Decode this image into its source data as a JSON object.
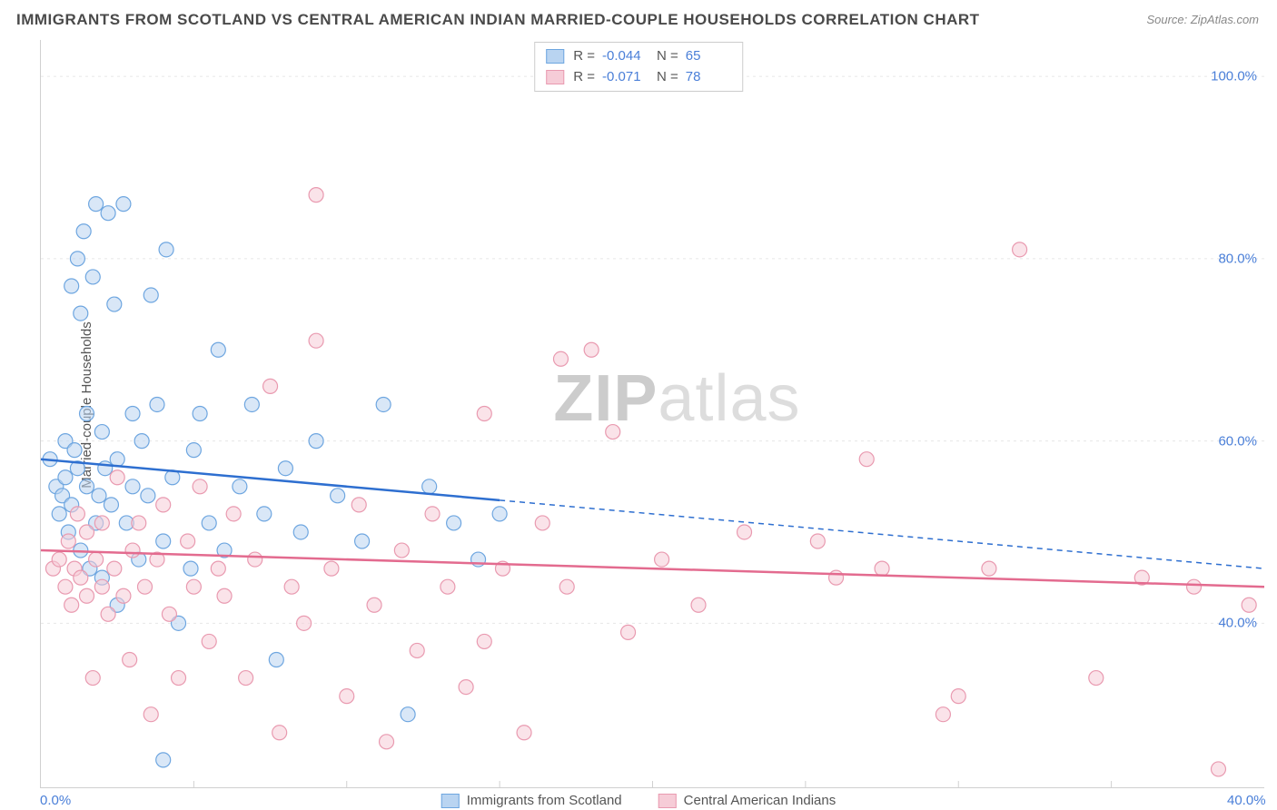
{
  "title": "IMMIGRANTS FROM SCOTLAND VS CENTRAL AMERICAN INDIAN MARRIED-COUPLE HOUSEHOLDS CORRELATION CHART",
  "source_label": "Source: ZipAtlas.com",
  "ylabel": "Married-couple Households",
  "watermark": {
    "bold": "ZIP",
    "light": "atlas"
  },
  "chart": {
    "type": "scatter",
    "background_color": "#ffffff",
    "grid_color": "#e8e8e8",
    "axis_color": "#d0d0d0",
    "xlim": [
      0,
      40
    ],
    "ylim": [
      22,
      104
    ],
    "xticks": [
      0,
      40
    ],
    "xtick_labels": [
      "0.0%",
      "40.0%"
    ],
    "yticks": [
      40,
      60,
      80,
      100
    ],
    "ytick_labels": [
      "40.0%",
      "60.0%",
      "80.0%",
      "100.0%"
    ],
    "x_minor_ticks": [
      5,
      10,
      15,
      20,
      25,
      30,
      35
    ],
    "marker_radius": 8,
    "marker_opacity": 0.55,
    "line_width": 2.5
  },
  "stats_box": {
    "rows": [
      {
        "swatch_fill": "#b9d4f1",
        "swatch_stroke": "#6ea6e0",
        "R": "-0.044",
        "N": "65"
      },
      {
        "swatch_fill": "#f6ccd7",
        "swatch_stroke": "#e99ab0",
        "R": "-0.071",
        "N": "78"
      }
    ]
  },
  "legend": {
    "items": [
      {
        "label": "Immigrants from Scotland",
        "fill": "#b9d4f1",
        "stroke": "#6ea6e0"
      },
      {
        "label": "Central American Indians",
        "fill": "#f6ccd7",
        "stroke": "#e99ab0"
      }
    ]
  },
  "series": [
    {
      "name": "Immigrants from Scotland",
      "fill": "#b9d4f1",
      "stroke": "#6ea6e0",
      "trend": {
        "color": "#2e6fd0",
        "y_at_xmin": 58,
        "y_at_xmax": 46,
        "solid_until_x": 15
      },
      "points": [
        [
          0.3,
          58
        ],
        [
          0.5,
          55
        ],
        [
          0.6,
          52
        ],
        [
          0.7,
          54
        ],
        [
          0.8,
          60
        ],
        [
          0.8,
          56
        ],
        [
          0.9,
          50
        ],
        [
          1.0,
          77
        ],
        [
          1.0,
          53
        ],
        [
          1.1,
          59
        ],
        [
          1.2,
          80
        ],
        [
          1.2,
          57
        ],
        [
          1.3,
          74
        ],
        [
          1.3,
          48
        ],
        [
          1.4,
          83
        ],
        [
          1.5,
          55
        ],
        [
          1.5,
          63
        ],
        [
          1.6,
          46
        ],
        [
          1.7,
          78
        ],
        [
          1.8,
          51
        ],
        [
          1.8,
          86
        ],
        [
          1.9,
          54
        ],
        [
          2.0,
          61
        ],
        [
          2.0,
          45
        ],
        [
          2.1,
          57
        ],
        [
          2.2,
          85
        ],
        [
          2.3,
          53
        ],
        [
          2.4,
          75
        ],
        [
          2.5,
          58
        ],
        [
          2.5,
          42
        ],
        [
          2.7,
          86
        ],
        [
          2.8,
          51
        ],
        [
          3.0,
          63
        ],
        [
          3.0,
          55
        ],
        [
          3.2,
          47
        ],
        [
          3.3,
          60
        ],
        [
          3.5,
          54
        ],
        [
          3.6,
          76
        ],
        [
          3.8,
          64
        ],
        [
          4.0,
          49
        ],
        [
          4.0,
          25
        ],
        [
          4.1,
          81
        ],
        [
          4.3,
          56
        ],
        [
          4.5,
          40
        ],
        [
          4.9,
          46
        ],
        [
          5.0,
          59
        ],
        [
          5.2,
          63
        ],
        [
          5.5,
          51
        ],
        [
          5.8,
          70
        ],
        [
          6.0,
          48
        ],
        [
          6.5,
          55
        ],
        [
          6.9,
          64
        ],
        [
          7.3,
          52
        ],
        [
          7.7,
          36
        ],
        [
          8.0,
          57
        ],
        [
          8.5,
          50
        ],
        [
          9.0,
          60
        ],
        [
          9.7,
          54
        ],
        [
          10.5,
          49
        ],
        [
          11.2,
          64
        ],
        [
          12.0,
          30
        ],
        [
          12.7,
          55
        ],
        [
          13.5,
          51
        ],
        [
          14.3,
          47
        ],
        [
          15.0,
          52
        ]
      ]
    },
    {
      "name": "Central American Indians",
      "fill": "#f6ccd7",
      "stroke": "#e99ab0",
      "trend": {
        "color": "#e36b8f",
        "y_at_xmin": 48,
        "y_at_xmax": 44,
        "solid_until_x": 40
      },
      "points": [
        [
          0.4,
          46
        ],
        [
          0.6,
          47
        ],
        [
          0.8,
          44
        ],
        [
          0.9,
          49
        ],
        [
          1.0,
          42
        ],
        [
          1.1,
          46
        ],
        [
          1.2,
          52
        ],
        [
          1.3,
          45
        ],
        [
          1.5,
          43
        ],
        [
          1.5,
          50
        ],
        [
          1.7,
          34
        ],
        [
          1.8,
          47
        ],
        [
          2.0,
          51
        ],
        [
          2.0,
          44
        ],
        [
          2.2,
          41
        ],
        [
          2.4,
          46
        ],
        [
          2.5,
          56
        ],
        [
          2.7,
          43
        ],
        [
          2.9,
          36
        ],
        [
          3.0,
          48
        ],
        [
          3.2,
          51
        ],
        [
          3.4,
          44
        ],
        [
          3.6,
          30
        ],
        [
          3.8,
          47
        ],
        [
          4.0,
          53
        ],
        [
          4.2,
          41
        ],
        [
          4.5,
          34
        ],
        [
          4.8,
          49
        ],
        [
          5.0,
          44
        ],
        [
          5.2,
          55
        ],
        [
          5.5,
          38
        ],
        [
          5.8,
          46
        ],
        [
          6.0,
          43
        ],
        [
          6.3,
          52
        ],
        [
          6.7,
          34
        ],
        [
          7.0,
          47
        ],
        [
          7.5,
          66
        ],
        [
          7.8,
          28
        ],
        [
          8.2,
          44
        ],
        [
          8.6,
          40
        ],
        [
          9.0,
          71
        ],
        [
          9.0,
          87
        ],
        [
          9.5,
          46
        ],
        [
          10.0,
          32
        ],
        [
          10.4,
          53
        ],
        [
          10.9,
          42
        ],
        [
          11.3,
          27
        ],
        [
          11.8,
          48
        ],
        [
          12.3,
          37
        ],
        [
          12.8,
          52
        ],
        [
          13.3,
          44
        ],
        [
          13.9,
          33
        ],
        [
          14.5,
          63
        ],
        [
          14.5,
          38
        ],
        [
          15.1,
          46
        ],
        [
          15.8,
          28
        ],
        [
          16.4,
          51
        ],
        [
          17.0,
          69
        ],
        [
          17.2,
          44
        ],
        [
          18.0,
          70
        ],
        [
          18.7,
          61
        ],
        [
          19.2,
          39
        ],
        [
          20.3,
          47
        ],
        [
          21.5,
          42
        ],
        [
          23.0,
          50
        ],
        [
          25.4,
          49
        ],
        [
          26.0,
          45
        ],
        [
          27.0,
          58
        ],
        [
          27.5,
          46
        ],
        [
          29.5,
          30
        ],
        [
          30.0,
          32
        ],
        [
          31.0,
          46
        ],
        [
          32.0,
          81
        ],
        [
          34.5,
          34
        ],
        [
          36.0,
          45
        ],
        [
          37.7,
          44
        ],
        [
          38.5,
          24
        ],
        [
          39.5,
          42
        ]
      ]
    }
  ]
}
